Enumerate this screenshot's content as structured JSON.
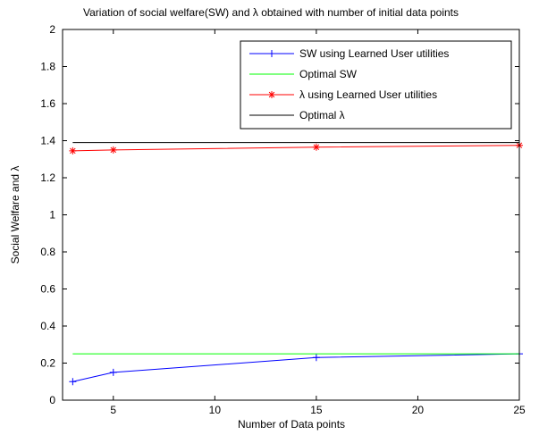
{
  "chart_data": {
    "type": "line",
    "title": "Variation of social welfare(SW) and λ obtained with number of initial data points",
    "xlabel": "Number of Data points",
    "ylabel": "Social Welfare and λ",
    "xlim": [
      2.5,
      25
    ],
    "ylim": [
      0,
      2
    ],
    "xticks": [
      5,
      10,
      15,
      20,
      25
    ],
    "yticks": [
      0,
      0.2,
      0.4,
      0.6,
      0.8,
      1,
      1.2,
      1.4,
      1.6,
      1.8,
      2
    ],
    "xtick_labels": [
      "5",
      "10",
      "15",
      "20",
      "25"
    ],
    "ytick_labels": [
      "0",
      "0.2",
      "0.4",
      "0.6",
      "0.8",
      "1",
      "1.2",
      "1.4",
      "1.6",
      "1.8",
      "2"
    ],
    "grid": false,
    "legend_position": "top-right",
    "series": [
      {
        "name": "SW using Learned User utilities",
        "color": "#0000ff",
        "marker": "plus",
        "x": [
          3,
          5,
          15,
          25
        ],
        "y": [
          0.1,
          0.15,
          0.23,
          0.25
        ]
      },
      {
        "name": "Optimal SW",
        "color": "#00ff00",
        "marker": "none",
        "x": [
          3,
          25
        ],
        "y": [
          0.25,
          0.25
        ]
      },
      {
        "name": "λ using Learned User utilities",
        "color": "#ff0000",
        "marker": "star",
        "x": [
          3,
          5,
          15,
          25
        ],
        "y": [
          1.345,
          1.35,
          1.365,
          1.375
        ]
      },
      {
        "name": "Optimal λ",
        "color": "#000000",
        "marker": "none",
        "x": [
          3,
          25
        ],
        "y": [
          1.39,
          1.39
        ]
      }
    ]
  }
}
